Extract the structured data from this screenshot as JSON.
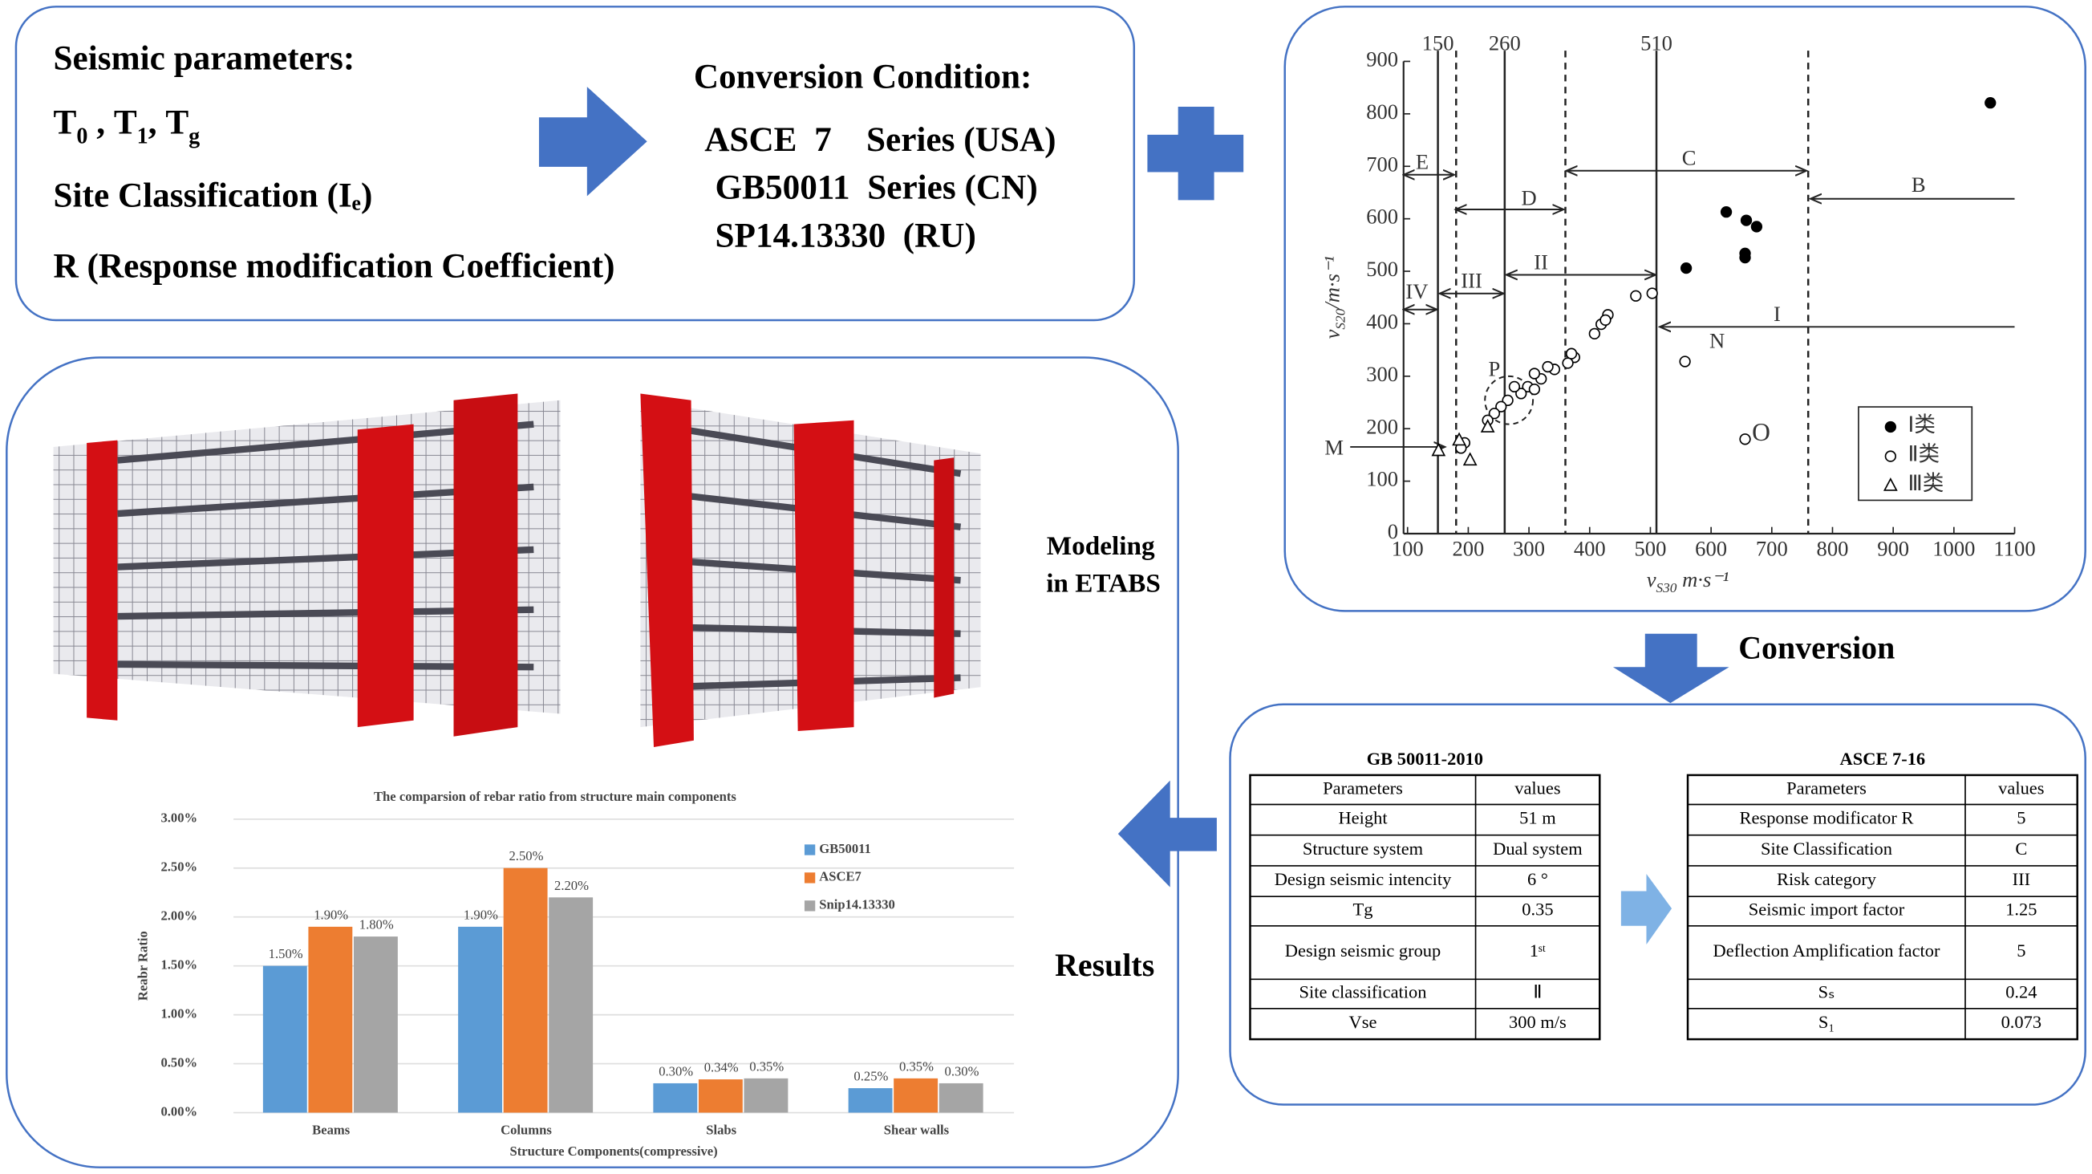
{
  "input_box": {
    "title": "Seismic parameters:",
    "periods": [
      "T",
      "0",
      " , ",
      "T",
      "1",
      ", ",
      "T",
      "g"
    ],
    "site": "Site Classification (Iₑ)",
    "r": "R (Response modification Coefficient)"
  },
  "conversion_condition": {
    "title": "Conversion Condition:",
    "codes": [
      "ASCE  7    Series (USA)",
      "GB50011  Series (CN)",
      "SP14.13330  (RU)"
    ]
  },
  "conversion_label": "Conversion",
  "modeling_label": [
    "Modeling",
    "in ETABS"
  ],
  "results_label": "Results",
  "tables": [
    {
      "title": "GB 50011-2010",
      "rows": [
        [
          "Parameters",
          "values"
        ],
        [
          "Height",
          "51 m"
        ],
        [
          "Structure system",
          "Dual system"
        ],
        [
          "Design seismic intencity",
          "6 °"
        ],
        [
          "Tg",
          "0.35"
        ],
        [
          "Design seismic group",
          "1ˢᵗ"
        ],
        [
          "Site classification",
          "Ⅱ"
        ],
        [
          "Vse",
          "300 m/s"
        ]
      ]
    },
    {
      "title": "ASCE 7-16",
      "rows": [
        [
          "Parameters",
          "values"
        ],
        [
          "Response modificator R",
          "5"
        ],
        [
          "Site Classification",
          "C"
        ],
        [
          "Risk category",
          "III"
        ],
        [
          "Seismic import factor",
          "1.25"
        ],
        [
          "Deflection Amplification factor",
          "5"
        ],
        [
          "Sₛ",
          "0.24"
        ],
        [
          "S₁",
          "0.073"
        ]
      ]
    }
  ],
  "chart_data": [
    {
      "type": "scatter",
      "x_label": [
        "v",
        "S30",
        " m·s⁻¹"
      ],
      "y_label": [
        "v",
        "S20",
        "/m·s⁻¹"
      ],
      "xlim": [
        100,
        1100
      ],
      "ylim": [
        0,
        900
      ],
      "xticks": [
        100,
        200,
        300,
        400,
        500,
        600,
        700,
        800,
        900,
        1000,
        1100
      ],
      "yticks": [
        0,
        100,
        200,
        300,
        400,
        500,
        600,
        700,
        800,
        900
      ],
      "vlines": [
        {
          "x": 150,
          "label": "150",
          "style": "solid"
        },
        {
          "x": 260,
          "label": "260",
          "style": "solid"
        },
        {
          "x": 510,
          "label": "510",
          "style": "solid"
        },
        {
          "x": 180,
          "style": "dashed"
        },
        {
          "x": 360,
          "style": "dashed"
        },
        {
          "x": 760,
          "style": "dashed"
        }
      ],
      "annotations": [
        "E",
        "D",
        "C",
        "B",
        "IV",
        "III",
        "II",
        "I",
        "M",
        "N",
        "P",
        "O"
      ],
      "series": [
        {
          "name": "Ⅰ类",
          "marker": "filled-circle",
          "color": "#000000",
          "x": [
            1060,
            559,
            625,
            658,
            675,
            656,
            656
          ],
          "y": [
            821,
            506,
            613,
            597,
            585,
            534,
            526
          ]
        },
        {
          "name": "Ⅱ类",
          "marker": "open-circle",
          "color": "#000000",
          "x": [
            557,
            656,
            476,
            503,
            430,
            408,
            419,
            426,
            375,
            370,
            364,
            342,
            331,
            320,
            309,
            298,
            309,
            287,
            276,
            265,
            254,
            243,
            232,
            194,
            188
          ],
          "y": [
            328,
            180,
            453,
            458,
            417,
            381,
            399,
            407,
            336,
            343,
            325,
            313,
            318,
            295,
            305,
            280,
            275,
            267,
            280,
            254,
            242,
            229,
            216,
            173,
            163
          ]
        },
        {
          "name": "Ⅲ类",
          "marker": "triangle",
          "color": "#000000",
          "x": [
            232,
            203,
            151,
            185
          ],
          "y": [
            203,
            140,
            158,
            178
          ]
        }
      ]
    },
    {
      "type": "bar",
      "title": "The comparsion of rebar ratio from structure main components",
      "x_label": "Structure Components(compressive)",
      "y_label": "Reabr Ratio",
      "categories": [
        "Beams",
        "Columns",
        "Slabs",
        "Shear walls"
      ],
      "ylim": [
        0,
        3
      ],
      "yticks": [
        {
          "value": 0,
          "label": "0.00%"
        },
        {
          "value": 0.5,
          "label": "0.50%"
        },
        {
          "value": 1,
          "label": "1.00%"
        },
        {
          "value": 1.5,
          "label": "1.50%"
        },
        {
          "value": 2,
          "label": "2.00%"
        },
        {
          "value": 2.5,
          "label": "2.50%"
        },
        {
          "value": 3,
          "label": "3.00%"
        }
      ],
      "grid": true,
      "series": [
        {
          "name": "GB50011",
          "color": "#5b9bd5",
          "values": [
            1.5,
            1.9,
            0.3,
            0.25
          ],
          "value_labels": [
            "1.50%",
            "1.90%",
            "0.30%",
            "0.25%"
          ]
        },
        {
          "name": "ASCE7",
          "color": "#ed7d31",
          "values": [
            1.9,
            2.5,
            0.34,
            0.35
          ],
          "value_labels": [
            "1.90%",
            "2.50%",
            "0.34%",
            "0.35%"
          ]
        },
        {
          "name": "Snip14.13330",
          "color": "#a5a5a5",
          "values": [
            1.8,
            2.2,
            0.35,
            0.3
          ],
          "value_labels": [
            "1.80%",
            "2.20%",
            "0.35%",
            "0.30%"
          ]
        }
      ]
    }
  ]
}
